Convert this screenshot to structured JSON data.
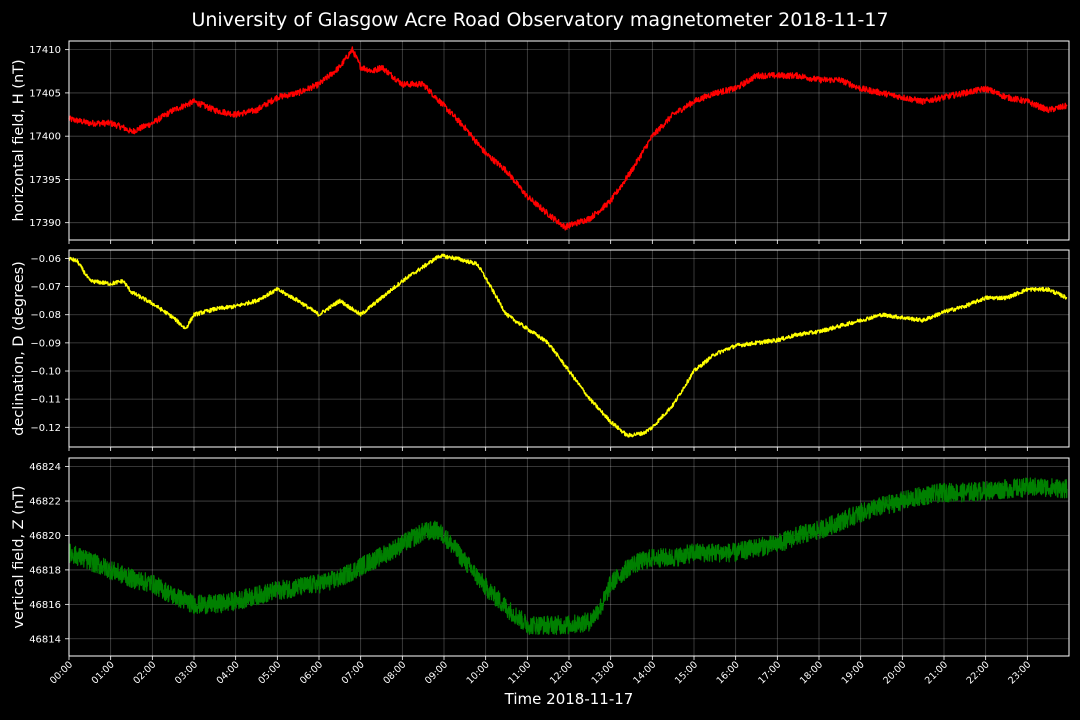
{
  "title": "University of Glasgow Acre Road Observatory magnetometer 2018-11-17",
  "xlabel": "Time 2018-11-17",
  "x_ticks": [
    "00:00",
    "01:00",
    "02:00",
    "03:00",
    "04:00",
    "05:00",
    "06:00",
    "07:00",
    "08:00",
    "09:00",
    "10:00",
    "11:00",
    "12:00",
    "13:00",
    "14:00",
    "15:00",
    "16:00",
    "17:00",
    "18:00",
    "19:00",
    "20:00",
    "21:00",
    "22:00",
    "23:00"
  ],
  "chart_data": [
    {
      "type": "line",
      "ylabel": "horizontal field, H (nT)",
      "ylim": [
        17388,
        17411
      ],
      "yticks": [
        17390,
        17395,
        17400,
        17405,
        17410
      ],
      "grid": true,
      "series": [
        {
          "color": "#ff0000",
          "x": [
            0,
            0.5,
            1,
            1.3,
            1.5,
            2,
            2.5,
            3,
            3.5,
            4,
            4.5,
            5,
            5.5,
            6,
            6.5,
            6.8,
            7,
            7.3,
            7.5,
            8,
            8.5,
            9,
            9.5,
            10,
            10.5,
            11,
            11.5,
            11.9,
            12.2,
            12.5,
            13,
            13.5,
            14,
            14.5,
            15,
            15.5,
            16,
            16.5,
            17,
            17.5,
            18,
            18.5,
            19,
            19.5,
            20,
            20.5,
            21,
            21.5,
            22,
            22.5,
            23,
            23.5,
            23.95
          ],
          "y": [
            17402,
            17401.5,
            17401.5,
            17401,
            17400.5,
            17401.5,
            17403,
            17404,
            17403,
            17402.5,
            17403,
            17404.5,
            17405,
            17406,
            17408,
            17410,
            17408,
            17407.5,
            17408,
            17406,
            17406,
            17403.5,
            17401,
            17398,
            17396,
            17393,
            17391,
            17389.5,
            17390,
            17390.5,
            17392.5,
            17396,
            17400,
            17402.5,
            17404,
            17405,
            17405.5,
            17407,
            17407,
            17407,
            17406.5,
            17406.5,
            17405.5,
            17405,
            17404.5,
            17404,
            17404.5,
            17405,
            17405.5,
            17404.5,
            17404,
            17403,
            17403.5
          ]
        }
      ]
    },
    {
      "type": "line",
      "ylabel": "declination, D (degrees)",
      "ylim": [
        -0.127,
        -0.057
      ],
      "yticks": [
        -0.06,
        -0.07,
        -0.08,
        -0.09,
        -0.1,
        -0.11,
        -0.12
      ],
      "ytick_labels": [
        "−0.06",
        "−0.07",
        "−0.08",
        "−0.09",
        "−0.10",
        "−0.11",
        "−0.12"
      ],
      "grid": true,
      "series": [
        {
          "color": "#ffff00",
          "x": [
            0,
            0.2,
            0.5,
            1,
            1.3,
            1.5,
            2,
            2.5,
            2.8,
            3,
            3.5,
            4,
            4.5,
            5,
            5.5,
            6,
            6.5,
            7,
            7.5,
            8,
            8.5,
            8.9,
            9.3,
            9.8,
            10,
            10.5,
            11,
            11.5,
            12,
            12.5,
            13,
            13.4,
            13.8,
            14,
            14.5,
            15,
            15.5,
            16,
            16.5,
            17,
            17.5,
            18,
            18.5,
            19,
            19.5,
            20,
            20.5,
            21,
            21.5,
            22,
            22.5,
            23,
            23.5,
            23.95
          ],
          "y": [
            -0.06,
            -0.061,
            -0.068,
            -0.069,
            -0.068,
            -0.072,
            -0.076,
            -0.081,
            -0.085,
            -0.08,
            -0.078,
            -0.077,
            -0.075,
            -0.071,
            -0.075,
            -0.08,
            -0.075,
            -0.08,
            -0.074,
            -0.068,
            -0.063,
            -0.059,
            -0.06,
            -0.062,
            -0.067,
            -0.08,
            -0.085,
            -0.09,
            -0.1,
            -0.11,
            -0.118,
            -0.123,
            -0.122,
            -0.12,
            -0.112,
            -0.1,
            -0.094,
            -0.091,
            -0.09,
            -0.089,
            -0.087,
            -0.086,
            -0.084,
            -0.082,
            -0.08,
            -0.081,
            -0.082,
            -0.079,
            -0.077,
            -0.074,
            -0.074,
            -0.071,
            -0.071,
            -0.074
          ]
        }
      ]
    },
    {
      "type": "line",
      "ylabel": "vertical field, Z (nT)",
      "ylim": [
        46813,
        46824.5
      ],
      "yticks": [
        46814,
        46816,
        46818,
        46820,
        46822,
        46824
      ],
      "grid": true,
      "series": [
        {
          "color": "#008000",
          "x": [
            0,
            0.5,
            1,
            1.5,
            2,
            2.5,
            3,
            3.5,
            4,
            4.5,
            5,
            5.5,
            6,
            6.5,
            7,
            7.5,
            8,
            8.5,
            8.8,
            9,
            9.5,
            10,
            10.5,
            11,
            11.5,
            12,
            12.5,
            12.8,
            13,
            13.5,
            14,
            14.5,
            15,
            15.5,
            16,
            16.5,
            17,
            17.5,
            18,
            18.5,
            19,
            19.5,
            20,
            20.5,
            21,
            21.5,
            22,
            22.5,
            23,
            23.5,
            23.95
          ],
          "y": [
            46819,
            46818.5,
            46818,
            46817.5,
            46817.2,
            46816.5,
            46816,
            46816,
            46816.2,
            46816.5,
            46816.8,
            46817,
            46817.2,
            46817.5,
            46818.2,
            46818.8,
            46819.5,
            46820.2,
            46820.3,
            46820,
            46818.5,
            46817,
            46815.8,
            46814.8,
            46814.8,
            46814.8,
            46815,
            46816,
            46817.2,
            46818.3,
            46818.7,
            46818.7,
            46819,
            46819,
            46819,
            46819.3,
            46819.5,
            46820,
            46820.3,
            46820.8,
            46821.3,
            46821.7,
            46822,
            46822.3,
            46822.5,
            46822.5,
            46822.6,
            46822.7,
            46822.8,
            46822.8,
            46822.7
          ]
        }
      ]
    }
  ]
}
